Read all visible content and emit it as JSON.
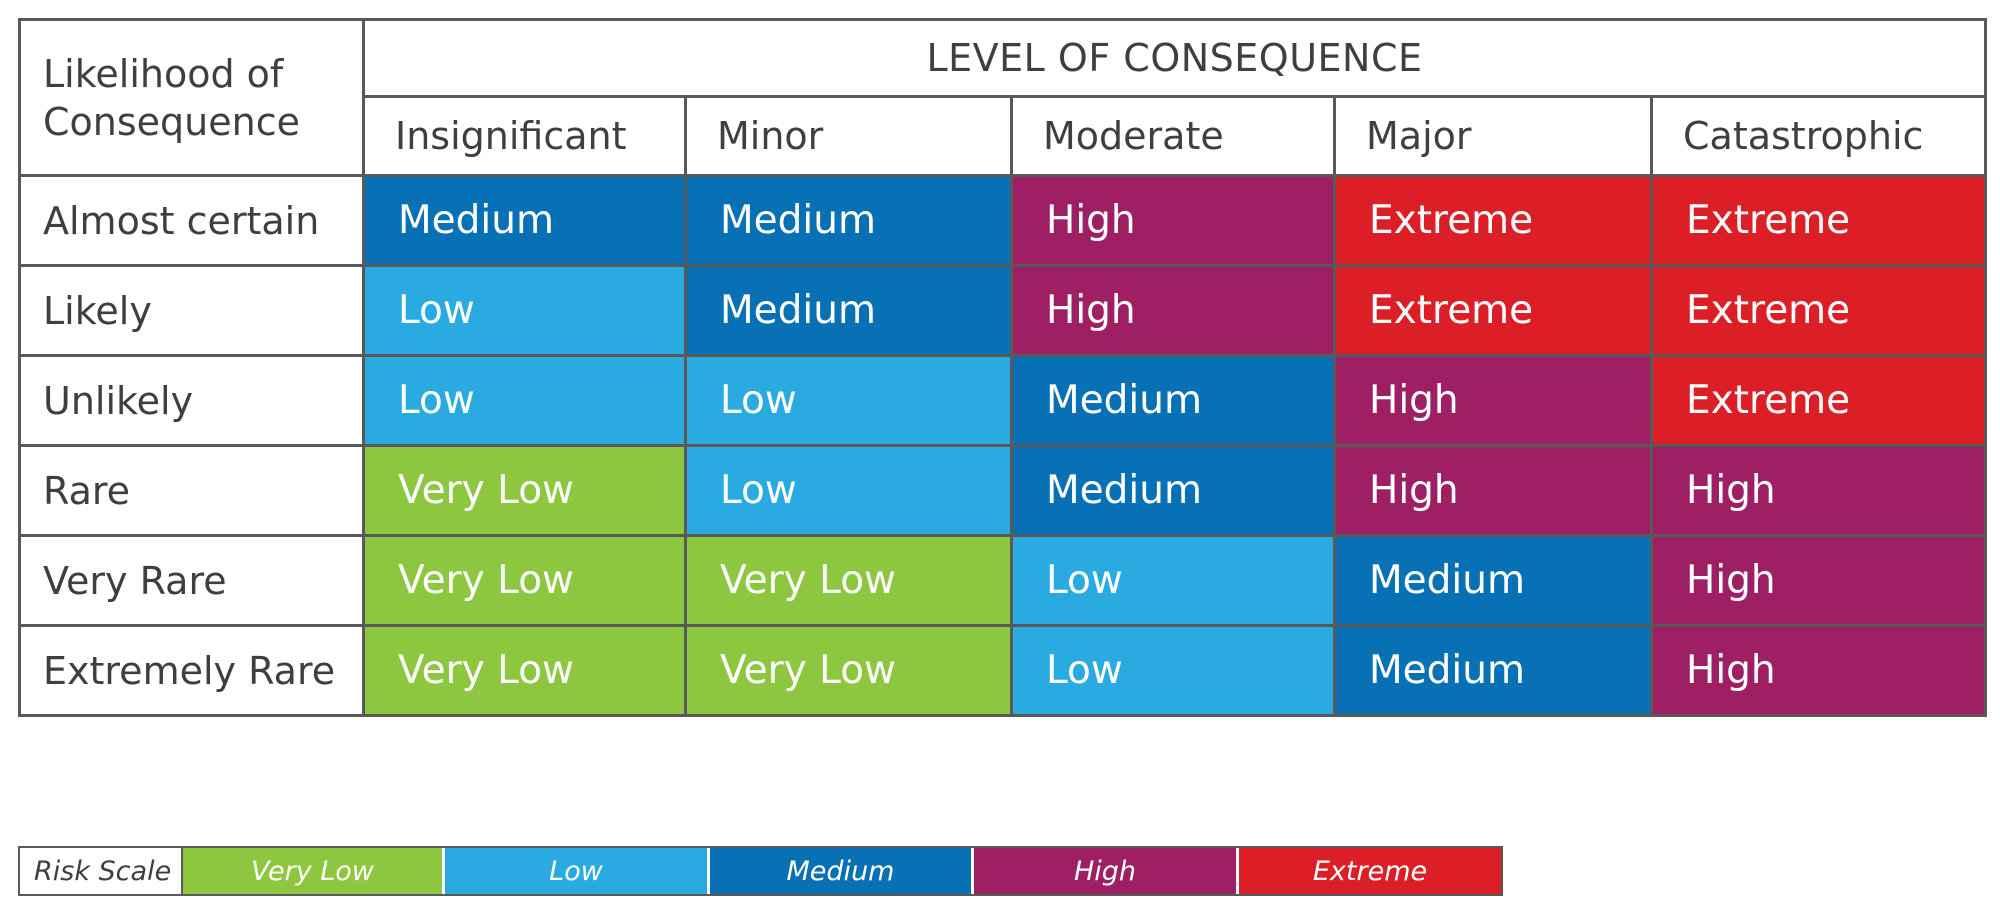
{
  "matrix": {
    "corner_line1": "Likelihood of",
    "corner_line2": "Consequence",
    "title": "LEVEL OF CONSEQUENCE",
    "columns": [
      "Insignificant",
      "Minor",
      "Moderate",
      "Major",
      "Catastrophic"
    ],
    "rows": [
      {
        "label": "Almost certain",
        "cells": [
          "Medium",
          "Medium",
          "High",
          "Extreme",
          "Extreme"
        ]
      },
      {
        "label": "Likely",
        "cells": [
          "Low",
          "Medium",
          "High",
          "Extreme",
          "Extreme"
        ]
      },
      {
        "label": "Unlikely",
        "cells": [
          "Low",
          "Low",
          "Medium",
          "High",
          "Extreme"
        ]
      },
      {
        "label": "Rare",
        "cells": [
          "Very Low",
          "Low",
          "Medium",
          "High",
          "High"
        ]
      },
      {
        "label": "Very Rare",
        "cells": [
          "Very Low",
          "Very Low",
          "Low",
          "Medium",
          "High"
        ]
      },
      {
        "label": "Extremely Rare",
        "cells": [
          "Very Low",
          "Very Low",
          "Low",
          "Medium",
          "High"
        ]
      }
    ]
  },
  "legend": {
    "label": "Risk Scale",
    "levels": [
      "Very Low",
      "Low",
      "Medium",
      "High",
      "Extreme"
    ]
  },
  "colors": {
    "very_low": "#8dc63f",
    "low": "#29abe2",
    "medium": "#0870b5",
    "high": "#9e1f63",
    "extreme": "#dc1f26",
    "border": "#595959",
    "text": "#3f3f3f"
  }
}
